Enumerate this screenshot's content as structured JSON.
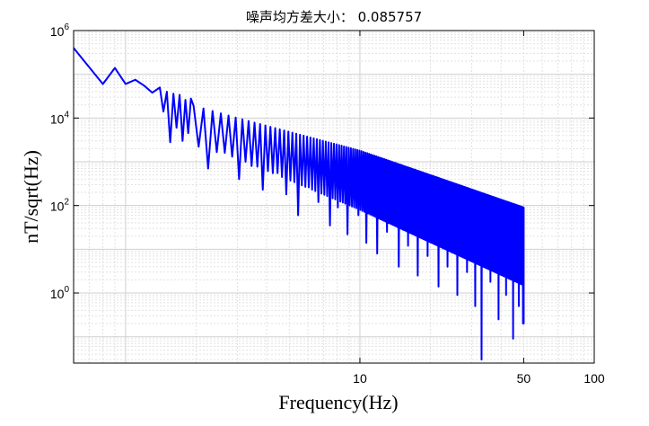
{
  "chart_data": {
    "type": "line",
    "title": "噪声均方差大小： 0.085757",
    "xlabel": "Frequency(Hz)",
    "ylabel": "nT/sqrt(Hz)",
    "xscale": "log",
    "yscale": "log",
    "xlim": [
      0.6,
      100
    ],
    "ylim": [
      0.025,
      1000000
    ],
    "grid": true,
    "x_ticks": [
      {
        "value": 10,
        "label": "10"
      },
      {
        "value": 50,
        "label": "50"
      },
      {
        "value": 100,
        "label": "100"
      }
    ],
    "y_ticks": [
      {
        "value": 1,
        "base": "10",
        "exp": "0"
      },
      {
        "value": 100,
        "base": "10",
        "exp": "2"
      },
      {
        "value": 10000,
        "base": "10",
        "exp": "4"
      },
      {
        "value": 1000000,
        "base": "10",
        "exp": "6"
      }
    ],
    "series": [
      {
        "color": "#0000ff",
        "x": [
          0.6,
          0.8,
          0.9,
          1.0,
          1.1,
          1.2,
          1.3,
          1.4,
          1.45,
          1.5,
          1.55,
          1.6,
          1.65,
          1.7,
          1.75,
          1.8,
          1.85,
          1.9
        ],
        "y": [
          400000,
          60000,
          140000,
          60000,
          75000,
          55000,
          38000,
          50000,
          14000,
          40000,
          2800,
          36000,
          6000,
          34000,
          3000,
          26000,
          4500,
          28000
        ]
      }
    ],
    "dense_band": {
      "color": "#0000ff",
      "x_start": 1.9,
      "x_end": 50,
      "envelope_upper": [
        [
          1.9,
          20000
        ],
        [
          3,
          10000
        ],
        [
          10,
          1800
        ],
        [
          50,
          90
        ]
      ],
      "envelope_lower": [
        [
          1.9,
          2500
        ],
        [
          3,
          1200
        ],
        [
          10,
          80
        ],
        [
          50,
          1.5
        ]
      ],
      "deep_dips": [
        [
          2.1,
          700
        ],
        [
          2.5,
          1600
        ],
        [
          3.0,
          400
        ],
        [
          3.4,
          800
        ],
        [
          3.8,
          230
        ],
        [
          4.3,
          550
        ],
        [
          4.8,
          180
        ],
        [
          5.4,
          60
        ],
        [
          6.0,
          260
        ],
        [
          6.6,
          120
        ],
        [
          7.3,
          35
        ],
        [
          8.0,
          90
        ],
        [
          8.8,
          22
        ],
        [
          9.7,
          60
        ],
        [
          10.6,
          14
        ],
        [
          11.8,
          8
        ],
        [
          13.0,
          25
        ],
        [
          14.5,
          4
        ],
        [
          16.0,
          12
        ],
        [
          17.5,
          2.5
        ],
        [
          19.3,
          7
        ],
        [
          21.5,
          1.4
        ],
        [
          23.5,
          4
        ],
        [
          26.0,
          0.9
        ],
        [
          28.5,
          3
        ],
        [
          31.0,
          0.5
        ],
        [
          33.0,
          0.03
        ],
        [
          36.0,
          1.8
        ],
        [
          39.0,
          0.25
        ],
        [
          42.0,
          0.9
        ],
        [
          45.0,
          0.09
        ],
        [
          47.5,
          0.5
        ],
        [
          49.5,
          0.2
        ]
      ]
    }
  }
}
